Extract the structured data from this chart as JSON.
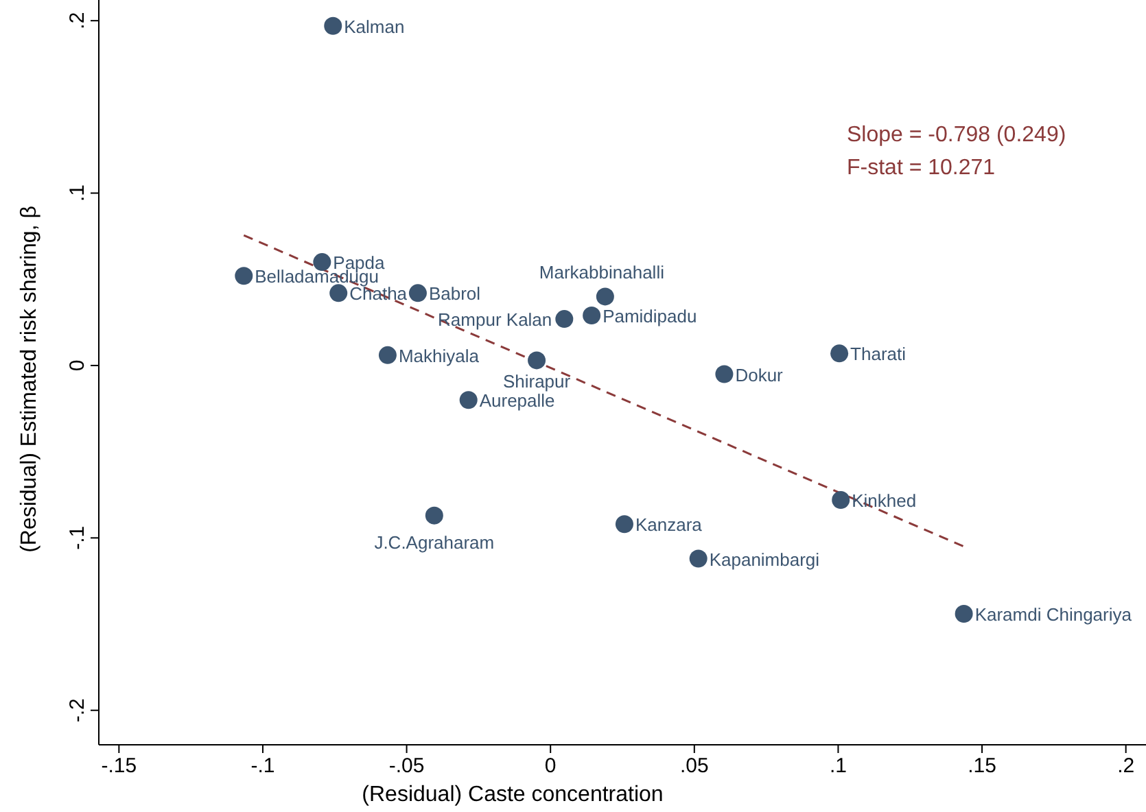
{
  "chart_data": {
    "type": "scatter",
    "xlabel": "(Residual) Caste concentration",
    "ylabel": "(Residual) Estimated risk sharing, β",
    "xlim": [
      -0.157,
      0.207
    ],
    "ylim": [
      -0.22,
      0.212
    ],
    "xticks": [
      {
        "value": -0.15,
        "label": "-.15"
      },
      {
        "value": -0.1,
        "label": "-.1"
      },
      {
        "value": -0.05,
        "label": "-.05"
      },
      0,
      {
        "value": 0.05,
        "label": ".05"
      },
      {
        "value": 0.1,
        "label": ".1"
      },
      {
        "value": 0.15,
        "label": ".15"
      },
      {
        "value": 0.2,
        "label": ".2"
      }
    ],
    "yticks": [
      {
        "value": -0.2,
        "label": "-.2"
      },
      {
        "value": -0.1,
        "label": "-.1"
      },
      0,
      {
        "value": 0.1,
        "label": ".1"
      },
      {
        "value": 0.2,
        "label": ".2"
      }
    ],
    "grid": false,
    "series": [
      {
        "marker": "circle",
        "color": "#3c5570",
        "x": [
          -0.0756,
          -0.0794,
          -0.1066,
          -0.0737,
          -0.0461,
          0.019,
          0.0048,
          0.0143,
          -0.0566,
          -0.0048,
          -0.0285,
          0.0604,
          0.1004,
          0.1009,
          -0.0404,
          0.0257,
          0.0514,
          0.1437
        ],
        "values": [
          0.197,
          0.06,
          0.052,
          0.042,
          0.042,
          0.04,
          0.027,
          0.029,
          0.006,
          0.003,
          -0.02,
          -0.005,
          0.007,
          -0.078,
          -0.087,
          -0.092,
          -0.112,
          -0.144
        ]
      },
      {
        "type": "line",
        "color": "#8b3a3a",
        "line_style": "dashed",
        "x": [
          -0.1066,
          0.1437
        ],
        "values": [
          0.0755,
          -0.105
        ]
      }
    ],
    "annotations": [
      "Slope = -0.798 (0.249)",
      "F-stat = 10.271",
      {
        "text": "Kalman",
        "x": -0.0756,
        "y": 0.197
      },
      {
        "text": "Papda",
        "x": -0.0794,
        "y": 0.06
      },
      {
        "text": "Belladamadugu",
        "x": -0.1066,
        "y": 0.052
      },
      {
        "text": "Chatha",
        "x": -0.0737,
        "y": 0.042
      },
      {
        "text": "Babrol",
        "x": -0.0461,
        "y": 0.042
      },
      {
        "text": "Markabbinahalli",
        "x": 0.019,
        "y": 0.04
      },
      {
        "text": "Rampur Kalan",
        "x": 0.0048,
        "y": 0.027
      },
      {
        "text": "Pamidipadu",
        "x": 0.0143,
        "y": 0.029
      },
      {
        "text": "Makhiyala",
        "x": -0.0566,
        "y": 0.006
      },
      {
        "text": "Shirapur",
        "x": -0.0048,
        "y": 0.003
      },
      {
        "text": "Aurepalle",
        "x": -0.0285,
        "y": -0.02
      },
      {
        "text": "Dokur",
        "x": 0.0604,
        "y": -0.005
      },
      {
        "text": "Tharati",
        "x": 0.1004,
        "y": 0.007
      },
      {
        "text": "Kinkhed",
        "x": 0.1009,
        "y": -0.078
      },
      {
        "text": "J.C.Agraharam",
        "x": -0.0404,
        "y": -0.087
      },
      {
        "text": "Kanzara",
        "x": 0.0257,
        "y": -0.092
      },
      {
        "text": "Kapanimbargi",
        "x": 0.0514,
        "y": -0.112
      },
      {
        "text": "Karamdi Chingariya",
        "x": 0.1437,
        "y": -0.144
      }
    ]
  }
}
